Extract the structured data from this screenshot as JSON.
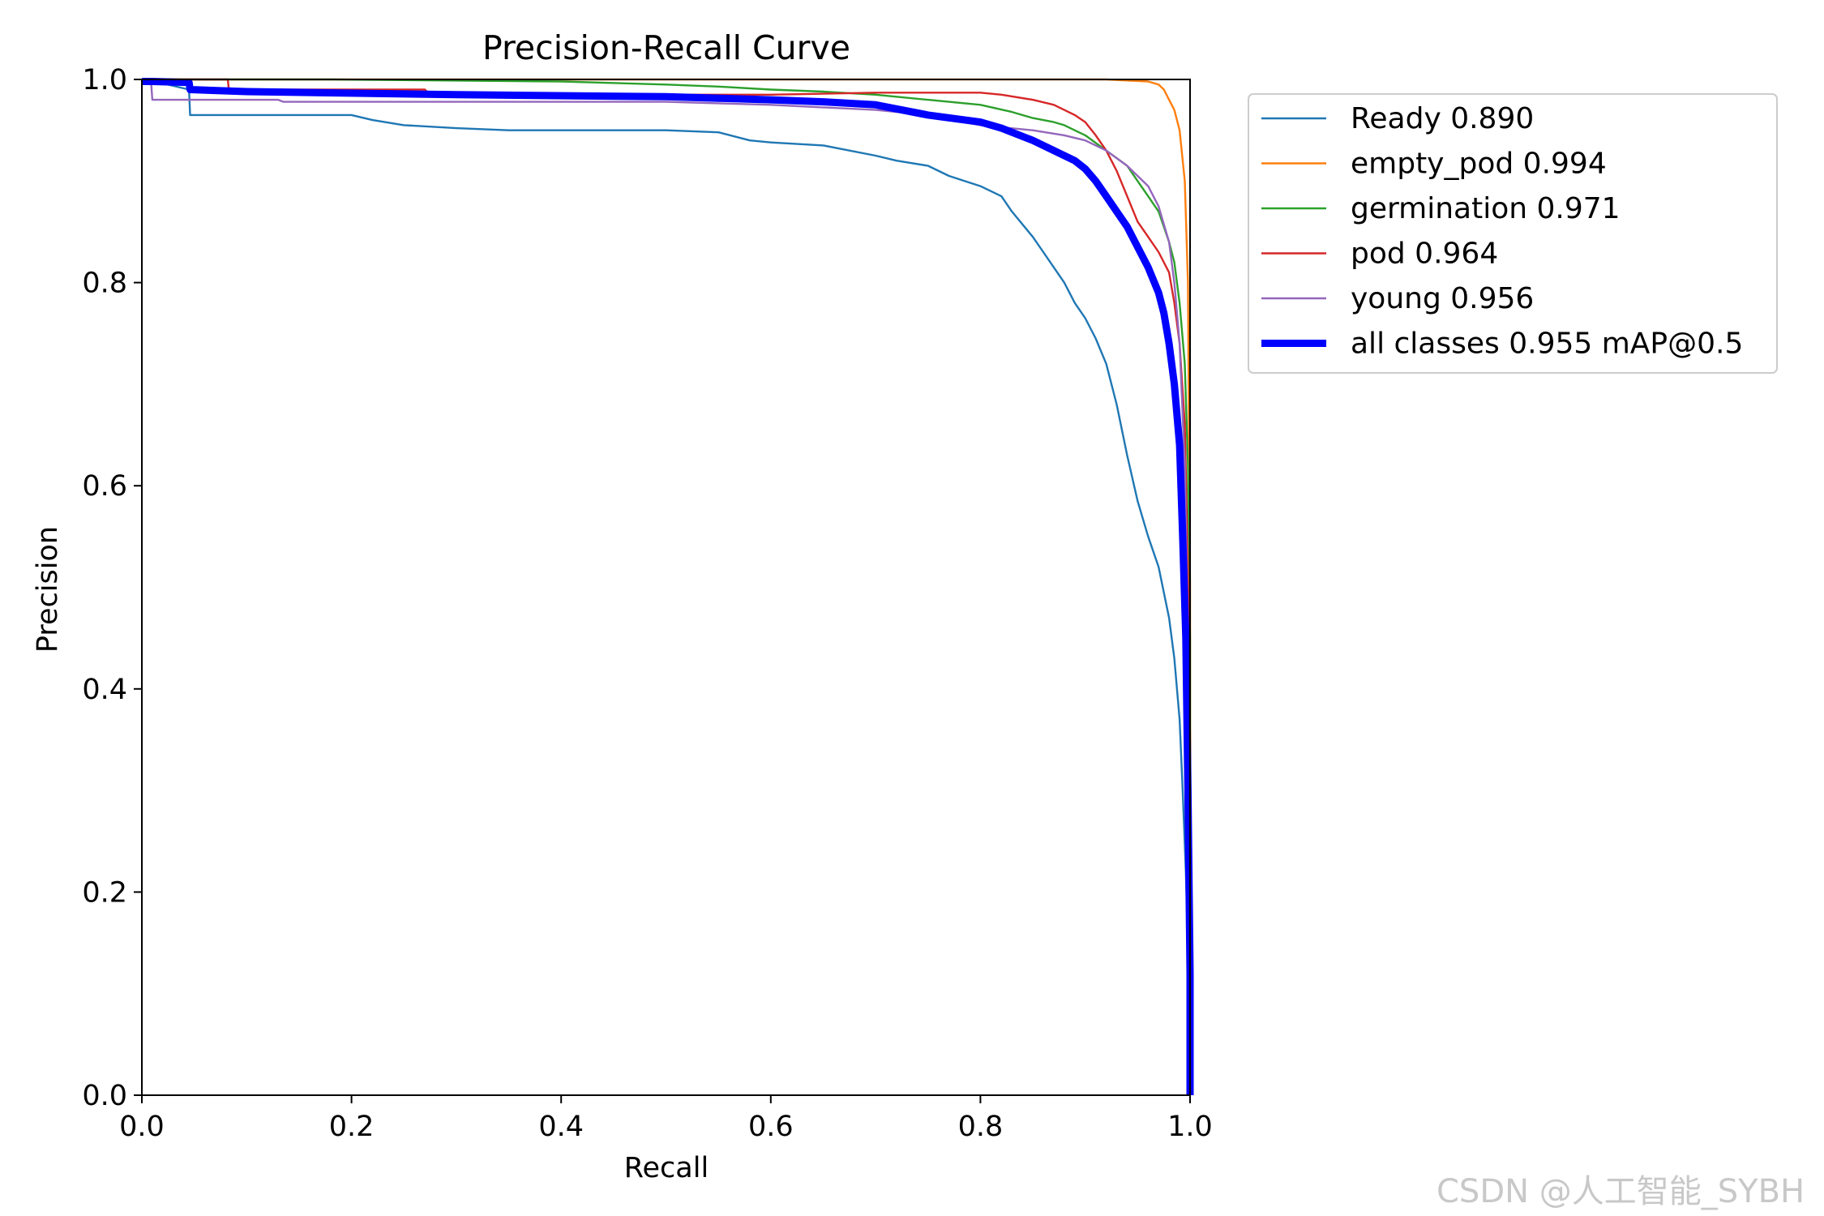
{
  "watermark": "CSDN @人工智能_SYBH",
  "chart_data": {
    "type": "line",
    "title": "Precision-Recall Curve",
    "xlabel": "Recall",
    "ylabel": "Precision",
    "xlim": [
      0,
      1
    ],
    "ylim": [
      0,
      1
    ],
    "xticks": [
      "0.0",
      "0.2",
      "0.4",
      "0.6",
      "0.8",
      "1.0"
    ],
    "yticks": [
      "0.0",
      "0.2",
      "0.4",
      "0.6",
      "0.8",
      "1.0"
    ],
    "grid": false,
    "legend_position": "outside-top-right",
    "series": [
      {
        "name": "Ready 0.890",
        "color": "#1f77b4",
        "x": [
          0,
          0.004,
          0.045,
          0.046,
          0.2,
          0.22,
          0.25,
          0.3,
          0.35,
          0.4,
          0.5,
          0.55,
          0.58,
          0.6,
          0.65,
          0.7,
          0.72,
          0.75,
          0.77,
          0.8,
          0.82,
          0.83,
          0.85,
          0.86,
          0.87,
          0.88,
          0.89,
          0.9,
          0.91,
          0.92,
          0.93,
          0.94,
          0.95,
          0.96,
          0.97,
          0.98,
          0.985,
          0.99,
          0.993,
          0.996,
          0.998,
          1.0,
          1.0
        ],
        "y": [
          1.0,
          1.0,
          0.99,
          0.965,
          0.965,
          0.96,
          0.955,
          0.952,
          0.95,
          0.95,
          0.95,
          0.948,
          0.94,
          0.938,
          0.935,
          0.925,
          0.92,
          0.915,
          0.905,
          0.895,
          0.885,
          0.87,
          0.845,
          0.83,
          0.815,
          0.8,
          0.78,
          0.765,
          0.745,
          0.72,
          0.68,
          0.63,
          0.585,
          0.55,
          0.52,
          0.47,
          0.43,
          0.37,
          0.3,
          0.22,
          0.15,
          0.05,
          0.0
        ]
      },
      {
        "name": "empty_pod 0.994",
        "color": "#ff7f0e",
        "x": [
          0,
          0.005,
          0.008,
          0.92,
          0.96,
          0.97,
          0.975,
          0.98,
          0.985,
          0.99,
          0.995,
          0.998,
          1.0,
          1.0
        ],
        "y": [
          1.0,
          1.0,
          1.0,
          1.0,
          0.998,
          0.995,
          0.99,
          0.98,
          0.97,
          0.95,
          0.9,
          0.8,
          0.5,
          0.0
        ]
      },
      {
        "name": "germination 0.971",
        "color": "#2ca02c",
        "x": [
          0,
          0.005,
          0.18,
          0.4,
          0.5,
          0.55,
          0.6,
          0.65,
          0.7,
          0.75,
          0.8,
          0.83,
          0.85,
          0.87,
          0.88,
          0.9,
          0.92,
          0.94,
          0.95,
          0.96,
          0.97,
          0.98,
          0.985,
          0.99,
          0.995,
          0.998,
          1.0,
          1.0
        ],
        "y": [
          1.0,
          1.0,
          1.0,
          0.998,
          0.995,
          0.993,
          0.99,
          0.988,
          0.985,
          0.98,
          0.975,
          0.968,
          0.962,
          0.958,
          0.955,
          0.945,
          0.93,
          0.915,
          0.9,
          0.885,
          0.87,
          0.84,
          0.82,
          0.78,
          0.72,
          0.62,
          0.45,
          0.0
        ]
      },
      {
        "name": "pod 0.964",
        "color": "#d62728",
        "x": [
          0,
          0.005,
          0.082,
          0.083,
          0.27,
          0.275,
          0.6,
          0.7,
          0.8,
          0.82,
          0.85,
          0.87,
          0.88,
          0.89,
          0.9,
          0.91,
          0.92,
          0.93,
          0.94,
          0.95,
          0.96,
          0.97,
          0.98,
          0.985,
          0.99,
          0.995,
          0.998,
          1.0,
          1.0
        ],
        "y": [
          1.0,
          1.0,
          1.0,
          0.99,
          0.99,
          0.985,
          0.985,
          0.987,
          0.987,
          0.985,
          0.98,
          0.975,
          0.97,
          0.965,
          0.958,
          0.945,
          0.93,
          0.91,
          0.885,
          0.86,
          0.845,
          0.83,
          0.81,
          0.78,
          0.74,
          0.66,
          0.52,
          0.35,
          0.0
        ]
      },
      {
        "name": "young 0.956",
        "color": "#9467bd",
        "x": [
          0,
          0.004,
          0.009,
          0.01,
          0.13,
          0.135,
          0.5,
          0.6,
          0.7,
          0.75,
          0.8,
          0.85,
          0.88,
          0.9,
          0.92,
          0.94,
          0.95,
          0.96,
          0.97,
          0.98,
          0.985,
          0.99,
          0.995,
          0.998,
          1.0,
          1.0
        ],
        "y": [
          1.0,
          1.0,
          0.995,
          0.98,
          0.98,
          0.978,
          0.978,
          0.975,
          0.97,
          0.965,
          0.955,
          0.95,
          0.945,
          0.94,
          0.93,
          0.915,
          0.905,
          0.895,
          0.875,
          0.84,
          0.8,
          0.74,
          0.62,
          0.45,
          0.25,
          0.0
        ]
      },
      {
        "name": "all classes 0.955 mAP@0.5",
        "color": "#0000ff",
        "x": [
          0,
          0.01,
          0.045,
          0.046,
          0.1,
          0.3,
          0.5,
          0.6,
          0.65,
          0.7,
          0.75,
          0.8,
          0.82,
          0.85,
          0.87,
          0.89,
          0.9,
          0.91,
          0.92,
          0.93,
          0.94,
          0.95,
          0.96,
          0.97,
          0.975,
          0.98,
          0.985,
          0.99,
          0.993,
          0.996,
          0.998,
          1.0,
          1.0
        ],
        "y": [
          0.998,
          0.998,
          0.997,
          0.99,
          0.988,
          0.985,
          0.983,
          0.98,
          0.978,
          0.975,
          0.965,
          0.958,
          0.952,
          0.94,
          0.93,
          0.92,
          0.912,
          0.9,
          0.885,
          0.87,
          0.855,
          0.835,
          0.815,
          0.79,
          0.77,
          0.74,
          0.7,
          0.64,
          0.55,
          0.45,
          0.3,
          0.12,
          0.0
        ]
      }
    ]
  }
}
